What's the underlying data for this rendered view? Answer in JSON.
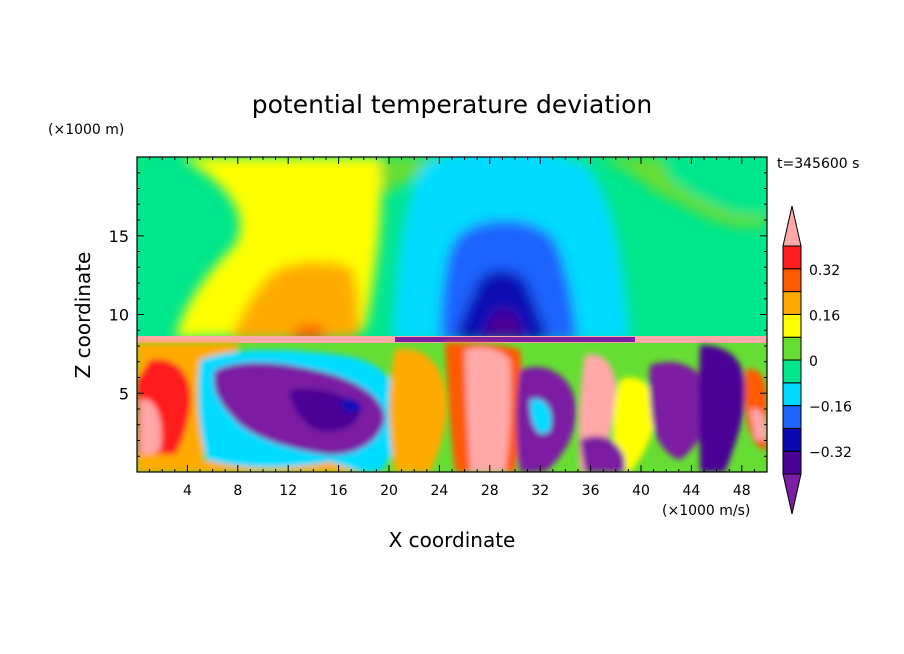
{
  "chart_data": {
    "type": "heatmap",
    "title": "potential temperature deviation",
    "time_label": "t=345600 s",
    "xlabel": "X coordinate",
    "ylabel": "Z coordinate",
    "x_unit": "(×1000 m/s)",
    "y_unit": "(×1000 m)",
    "xlim": [
      0,
      50
    ],
    "ylim": [
      0,
      20
    ],
    "x_ticks": [
      4,
      8,
      12,
      16,
      20,
      24,
      28,
      32,
      36,
      40,
      44,
      48
    ],
    "y_ticks": [
      5,
      10,
      15
    ],
    "colorbar": {
      "levels": [
        -0.4,
        -0.32,
        -0.24,
        -0.16,
        -0.08,
        0,
        0.08,
        0.16,
        0.24,
        0.32,
        0.4
      ],
      "colors": [
        "#7b1fa2",
        "#4b0096",
        "#0a0ab4",
        "#1e64ff",
        "#00dcff",
        "#00e68c",
        "#66dd33",
        "#ffff00",
        "#ffaa00",
        "#ff5a00",
        "#ff1e1e",
        "#ffa8a8"
      ],
      "tick_labels": [
        "0.32",
        "0.16",
        "0",
        "−0.16",
        "−0.32"
      ],
      "tick_values": [
        0.32,
        0.16,
        0,
        -0.16,
        -0.32
      ],
      "extend": "both"
    },
    "grid": false
  }
}
